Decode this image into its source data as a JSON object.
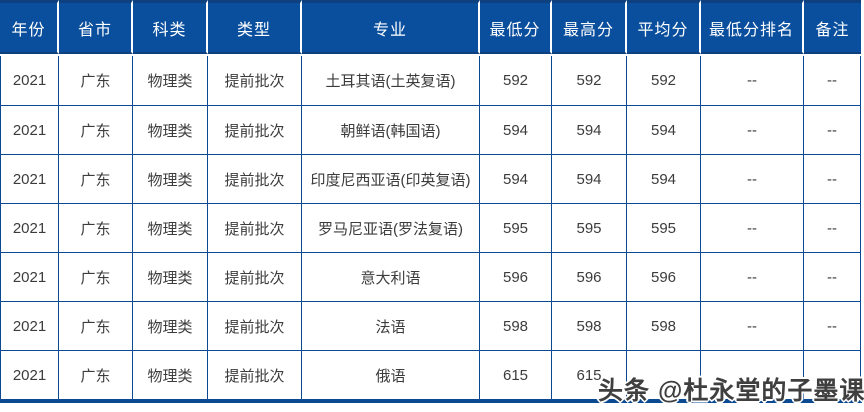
{
  "colors": {
    "header_background": "#0a4f9e",
    "header_text": "#ffffff",
    "header_edge": "#0e3f7e",
    "grid_line": "#0b4a91",
    "body_text": "#3c3c3c",
    "watermark_text": "#3f3f3f"
  },
  "watermark": {
    "text": "头条 @杜永堂的子墨课堂"
  },
  "chart_data": {
    "type": "table",
    "columns": [
      "年份",
      "省市",
      "科类",
      "类型",
      "专业",
      "最低分",
      "最高分",
      "平均分",
      "最低分排名",
      "备注"
    ],
    "rows": [
      [
        "2021",
        "广东",
        "物理类",
        "提前批次",
        "土耳其语(土英复语)",
        "592",
        "592",
        "592",
        "--",
        "--"
      ],
      [
        "2021",
        "广东",
        "物理类",
        "提前批次",
        "朝鲜语(韩国语)",
        "594",
        "594",
        "594",
        "--",
        "--"
      ],
      [
        "2021",
        "广东",
        "物理类",
        "提前批次",
        "印度尼西亚语(印英复语)",
        "594",
        "594",
        "594",
        "--",
        "--"
      ],
      [
        "2021",
        "广东",
        "物理类",
        "提前批次",
        "罗马尼亚语(罗法复语)",
        "595",
        "595",
        "595",
        "--",
        "--"
      ],
      [
        "2021",
        "广东",
        "物理类",
        "提前批次",
        "意大利语",
        "596",
        "596",
        "596",
        "--",
        "--"
      ],
      [
        "2021",
        "广东",
        "物理类",
        "提前批次",
        "法语",
        "598",
        "598",
        "598",
        "--",
        "--"
      ],
      [
        "2021",
        "广东",
        "物理类",
        "提前批次",
        "俄语",
        "615",
        "615",
        "",
        "",
        ""
      ]
    ]
  }
}
